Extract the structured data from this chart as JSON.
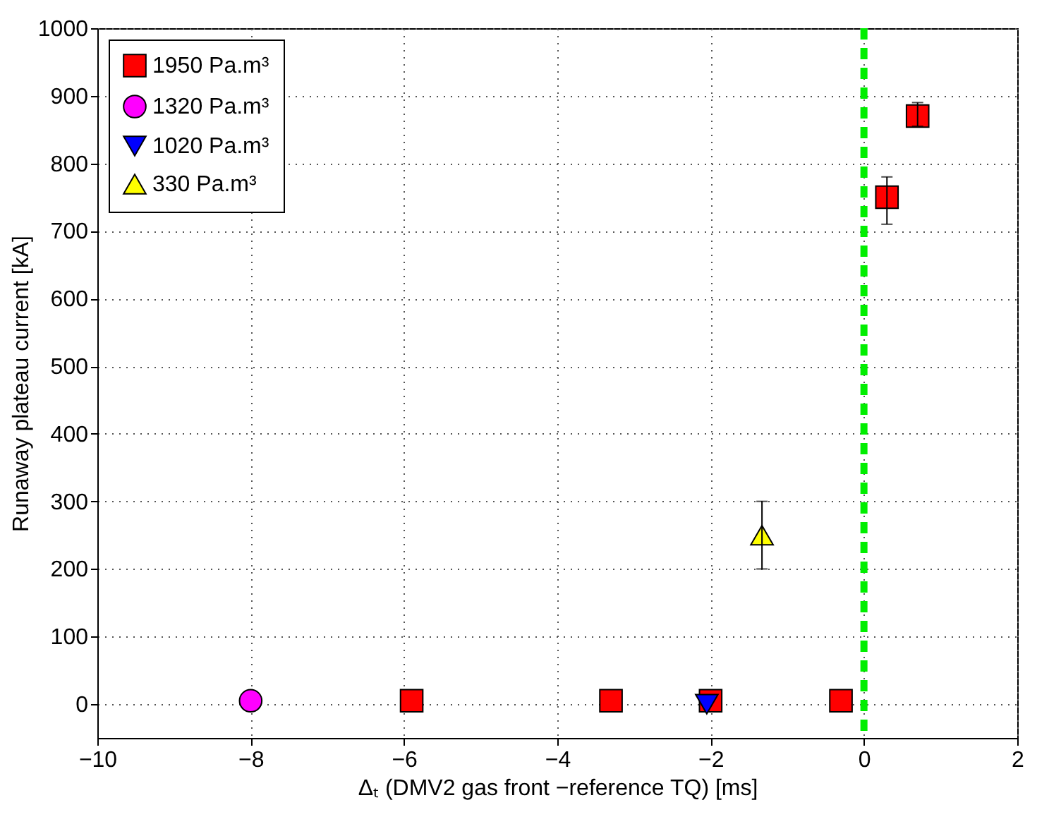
{
  "chart_data": {
    "type": "scatter",
    "xlabel": "Δₜ (DMV2 gas front −reference TQ) [ms]",
    "ylabel": "Runaway plateau current [kA]",
    "xlim": [
      -10,
      2
    ],
    "xticks": [
      -10,
      -8,
      -6,
      -4,
      -2,
      0,
      2
    ],
    "ylim": [
      -50,
      1000
    ],
    "yticks": [
      0,
      100,
      200,
      300,
      400,
      500,
      600,
      700,
      800,
      900,
      1000
    ],
    "grid": true,
    "legend": "top left",
    "series": [
      {
        "name": "1950 Pa.m³",
        "color": "#ff0000",
        "marker": "square",
        "x": [
          -5.9,
          -3.3,
          -2,
          -0.3,
          0.3,
          0.7
        ],
        "values": [
          5,
          5,
          5,
          5,
          750,
          870
        ],
        "errors": [
          null,
          null,
          null,
          null,
          [
            710,
            780
          ],
          [
            855,
            890
          ]
        ]
      },
      {
        "name": "1320 Pa.m³",
        "color": "#ff00ff",
        "marker": "circle",
        "x": [
          -8
        ],
        "values": [
          5
        ]
      },
      {
        "name": "1020 Pa.m³",
        "color": "#0000ff",
        "marker": "triangle-down",
        "x": [
          -2.05
        ],
        "values": [
          0
        ]
      },
      {
        "name": "330 Pa.m³",
        "color": "#ffff00",
        "marker": "triangle",
        "x": [
          -1.33
        ],
        "values": [
          250
        ],
        "errors": [
          [
            200,
            300
          ]
        ]
      }
    ],
    "ref_lines": [
      {
        "axis": "x",
        "value": 0,
        "color": "#00ee00",
        "line_style": "dashed"
      }
    ]
  }
}
